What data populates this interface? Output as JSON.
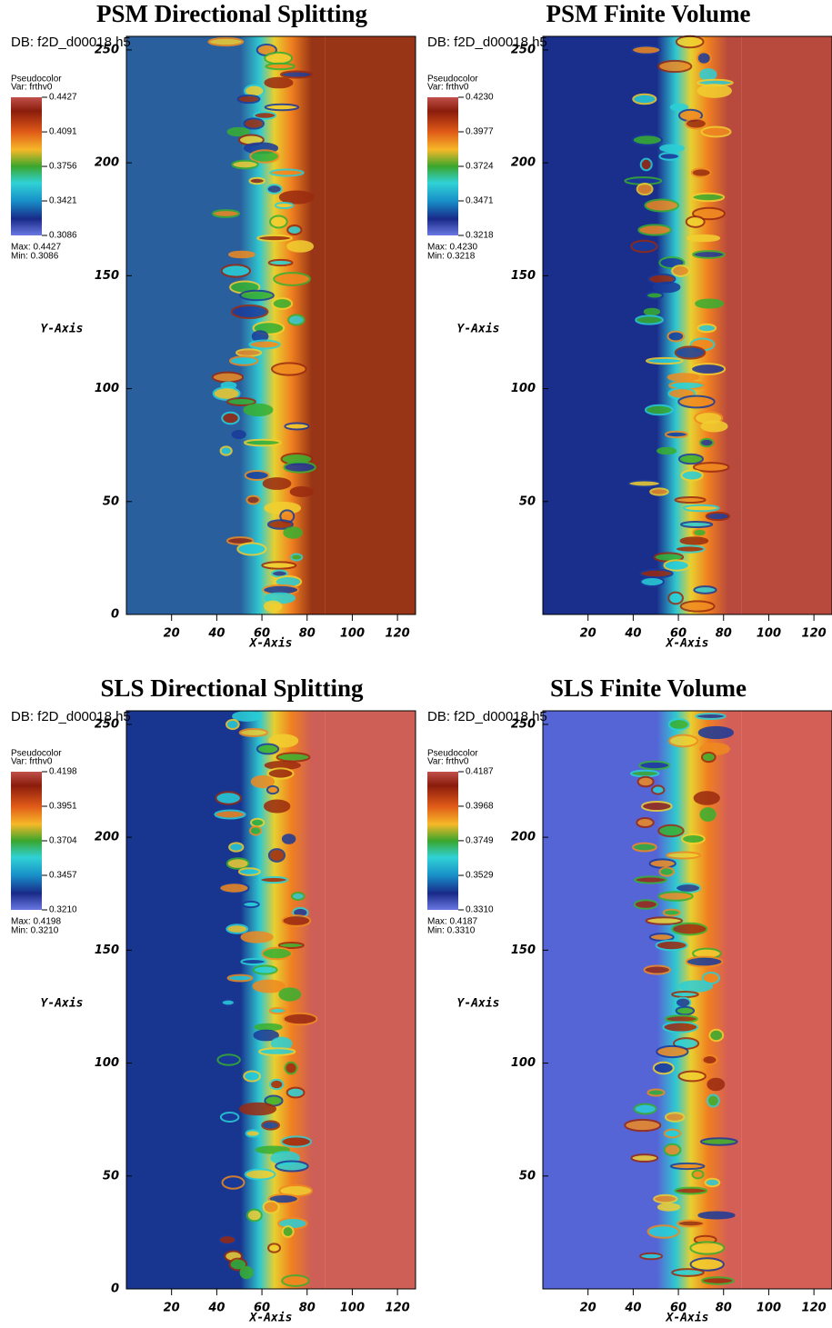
{
  "chart_data": [
    {
      "type": "pseudocolor",
      "title": "PSM Directional Splitting",
      "db": "DB: f2D_d00018.h5",
      "legend_title": "Pseudocolor",
      "legend_var": "Var: frthv0",
      "max_text": "Max: 0.4427",
      "min_text": "Min: 0.3086",
      "x_label": "X-Axis",
      "y_label": "Y-Axis",
      "xlim": [
        0,
        128
      ],
      "ylim": [
        0,
        256
      ],
      "xticks": [
        20,
        40,
        60,
        80,
        100,
        120
      ],
      "yticks": [
        0,
        50,
        100,
        150,
        200,
        250
      ],
      "clim": [
        0.3086,
        0.4427
      ],
      "cticks": [
        0.4427,
        0.4091,
        0.3756,
        0.3421,
        0.3086
      ],
      "low_color": "#2a5f9e",
      "high_color": "#983516"
    },
    {
      "type": "pseudocolor",
      "title": "PSM Finite Volume",
      "db": "DB: f2D_d00018.h5",
      "legend_title": "Pseudocolor",
      "legend_var": "Var: frthv0",
      "max_text": "Max: 0.4230",
      "min_text": "Min: 0.3218",
      "x_label": "X-Axis",
      "y_label": "Y-Axis",
      "xlim": [
        0,
        128
      ],
      "ylim": [
        0,
        256
      ],
      "xticks": [
        20,
        40,
        60,
        80,
        100,
        120
      ],
      "yticks": [
        50,
        100,
        150,
        200,
        250
      ],
      "clim": [
        0.3218,
        0.423
      ],
      "cticks": [
        {
          "value": 0.423,
          "label": "0.4230"
        },
        0.3977,
        0.3724,
        0.3471,
        0.3218
      ],
      "low_color": "#1a2e8c",
      "high_color": "#b8493d"
    },
    {
      "type": "pseudocolor",
      "title": "SLS Directional Splitting",
      "db": "DB: f2D_d00018.h5",
      "legend_title": "Pseudocolor",
      "legend_var": "Var: frthv0",
      "max_text": "Max: 0.4198",
      "min_text": "Min: 0.3210",
      "x_label": "X-Axis",
      "y_label": "Y-Axis",
      "xlim": [
        0,
        128
      ],
      "ylim": [
        0,
        256
      ],
      "xticks": [
        20,
        40,
        60,
        80,
        100,
        120
      ],
      "yticks": [
        0,
        50,
        100,
        150,
        200,
        250
      ],
      "clim": [
        0.321,
        0.4198
      ],
      "cticks": [
        0.4198,
        0.3951,
        0.3704,
        0.3457,
        {
          "value": 0.321,
          "label": "0.3210"
        }
      ],
      "low_color": "#183590",
      "high_color": "#cd5f56"
    },
    {
      "type": "pseudocolor",
      "title": "SLS Finite Volume",
      "db": "DB: f2D_d00018.h5",
      "legend_title": "Pseudocolor",
      "legend_var": "Var: frthv0",
      "max_text": "Max: 0.4187",
      "min_text": "Min: 0.3310",
      "x_label": "X-Axis",
      "y_label": "Y-Axis",
      "xlim": [
        0,
        128
      ],
      "ylim": [
        0,
        256
      ],
      "xticks": [
        20,
        40,
        60,
        80,
        100,
        120
      ],
      "yticks": [
        50,
        100,
        150,
        200,
        250
      ],
      "clim": [
        0.331,
        0.4187
      ],
      "cticks": [
        0.4187,
        0.3968,
        0.3749,
        0.3529,
        {
          "value": 0.331,
          "label": "0.3310"
        }
      ],
      "low_color": "#5565d6",
      "high_color": "#d45f56"
    }
  ]
}
